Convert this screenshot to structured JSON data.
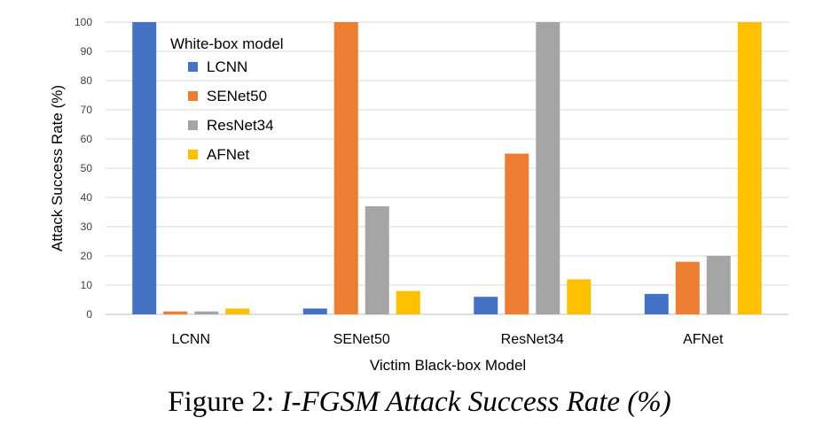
{
  "caption": {
    "label": "Figure 2:",
    "text": "I-FGSM Attack Success Rate (%)"
  },
  "chart_data": {
    "type": "bar",
    "categories": [
      "LCNN",
      "SENet50",
      "ResNet34",
      "AFNet"
    ],
    "series": [
      {
        "name": "LCNN",
        "color": "#4472C4",
        "values": [
          100,
          2,
          6,
          7
        ]
      },
      {
        "name": "SENet50",
        "color": "#ED7D31",
        "values": [
          1,
          100,
          55,
          18
        ]
      },
      {
        "name": "ResNet34",
        "color": "#A5A5A5",
        "values": [
          1,
          37,
          100,
          20
        ]
      },
      {
        "name": "AFNet",
        "color": "#FFC000",
        "values": [
          2,
          8,
          12,
          100
        ]
      }
    ],
    "legend_title": "White-box model",
    "legend_position": "top-left",
    "xlabel": "Victim Black-box Model",
    "ylabel": "Attack Success Rate (%)",
    "ylim": [
      0,
      100
    ],
    "yticks": [
      0,
      10,
      20,
      30,
      40,
      50,
      60,
      70,
      80,
      90,
      100
    ],
    "grid": true
  }
}
